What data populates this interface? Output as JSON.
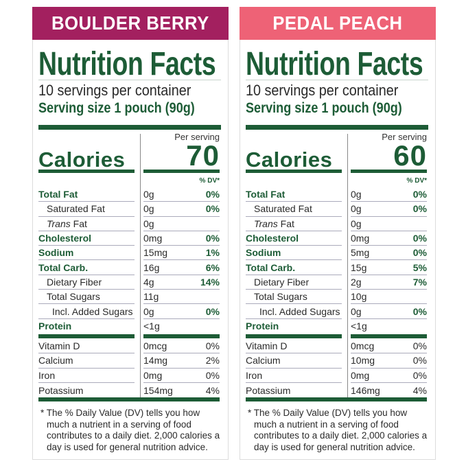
{
  "panels": [
    {
      "name": "BOULDER BERRY",
      "color": "#a3205f",
      "title": "Nutrition Facts",
      "servings": "10 servings per container",
      "serving_size": "Serving size 1 pouch (90g)",
      "per_serving": "Per serving",
      "calories_label": "Calories",
      "calories": "70",
      "dv_header": "% DV*",
      "nutrients": [
        {
          "label": "Total Fat",
          "amount": "0g",
          "dv": "0%",
          "style": "b"
        },
        {
          "label": "Saturated Fat",
          "amount": "0g",
          "dv": "0%",
          "style": "i1"
        },
        {
          "label": "Trans Fat",
          "amount": "0g",
          "dv": "",
          "style": "i1t"
        },
        {
          "label": "Cholesterol",
          "amount": "0mg",
          "dv": "0%",
          "style": "b"
        },
        {
          "label": "Sodium",
          "amount": "15mg",
          "dv": "1%",
          "style": "b"
        },
        {
          "label": "Total Carb.",
          "amount": "16g",
          "dv": "6%",
          "style": "b"
        },
        {
          "label": "Dietary Fiber",
          "amount": "4g",
          "dv": "14%",
          "style": "i1"
        },
        {
          "label": "Total Sugars",
          "amount": "11g",
          "dv": "",
          "style": "i1"
        },
        {
          "label": "Incl. Added Sugars",
          "amount": "0g",
          "dv": "0%",
          "style": "i2"
        },
        {
          "label": "Protein",
          "amount": "<1g",
          "dv": "",
          "style": "b"
        }
      ],
      "vitamins": [
        {
          "label": "Vitamin D",
          "amount": "0mcg",
          "dv": "0%"
        },
        {
          "label": "Calcium",
          "amount": "14mg",
          "dv": "2%"
        },
        {
          "label": "Iron",
          "amount": "0mg",
          "dv": "0%"
        },
        {
          "label": "Potassium",
          "amount": "154mg",
          "dv": "4%"
        }
      ],
      "footnote": "* The % Daily Value (DV) tells you how much a nutrient in a serving of food contributes to a daily diet. 2,000 calories a day is used for general nutrition advice."
    },
    {
      "name": "PEDAL PEACH",
      "color": "#ee6276",
      "title": "Nutrition Facts",
      "servings": "10 servings per container",
      "serving_size": "Serving size 1 pouch (90g)",
      "per_serving": "Per serving",
      "calories_label": "Calories",
      "calories": "60",
      "dv_header": "% DV*",
      "nutrients": [
        {
          "label": "Total Fat",
          "amount": "0g",
          "dv": "0%",
          "style": "b"
        },
        {
          "label": "Saturated Fat",
          "amount": "0g",
          "dv": "0%",
          "style": "i1"
        },
        {
          "label": "Trans Fat",
          "amount": "0g",
          "dv": "",
          "style": "i1t"
        },
        {
          "label": "Cholesterol",
          "amount": "0mg",
          "dv": "0%",
          "style": "b"
        },
        {
          "label": "Sodium",
          "amount": "5mg",
          "dv": "0%",
          "style": "b"
        },
        {
          "label": "Total Carb.",
          "amount": "15g",
          "dv": "5%",
          "style": "b"
        },
        {
          "label": "Dietary Fiber",
          "amount": "2g",
          "dv": "7%",
          "style": "i1"
        },
        {
          "label": "Total Sugars",
          "amount": "10g",
          "dv": "",
          "style": "i1"
        },
        {
          "label": "Incl. Added Sugars",
          "amount": "0g",
          "dv": "0%",
          "style": "i2"
        },
        {
          "label": "Protein",
          "amount": "<1g",
          "dv": "",
          "style": "b"
        }
      ],
      "vitamins": [
        {
          "label": "Vitamin D",
          "amount": "0mcg",
          "dv": "0%"
        },
        {
          "label": "Calcium",
          "amount": "10mg",
          "dv": "0%"
        },
        {
          "label": "Iron",
          "amount": "0mg",
          "dv": "0%"
        },
        {
          "label": "Potassium",
          "amount": "146mg",
          "dv": "4%"
        }
      ],
      "footnote": "* The % Daily Value (DV) tells you how much a nutrient in a serving of food contributes to a daily diet. 2,000 calories a day is used for general nutrition advice."
    }
  ]
}
